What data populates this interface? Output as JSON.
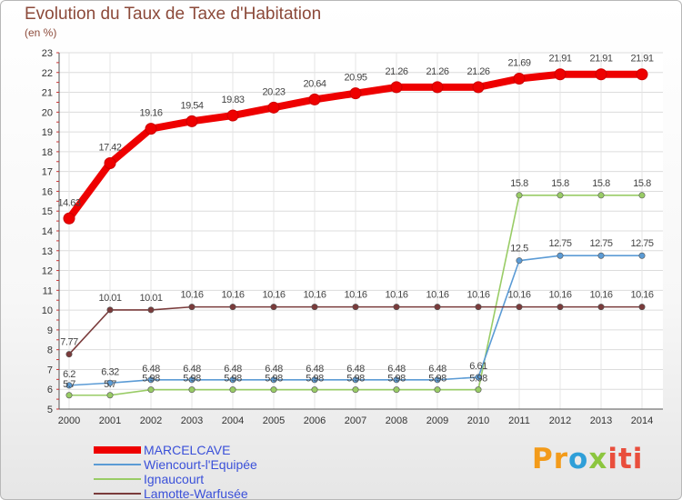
{
  "title": "Evolution du Taux de Taxe d'Habitation",
  "subtitle": "(en %)",
  "logo": {
    "text": "Proxiti"
  },
  "chart_data": {
    "type": "line",
    "title": "Evolution du Taux de Taxe d'Habitation",
    "ylabel": "(en %)",
    "x": [
      2000,
      2001,
      2002,
      2003,
      2004,
      2005,
      2006,
      2007,
      2008,
      2009,
      2010,
      2011,
      2012,
      2013,
      2014
    ],
    "ylim": [
      5,
      23
    ],
    "yticks": [
      5,
      6,
      7,
      8,
      9,
      10,
      11,
      12,
      13,
      14,
      15,
      16,
      17,
      18,
      19,
      20,
      21,
      22,
      23
    ],
    "grid": true,
    "legend": "bottom-left",
    "series": [
      {
        "name": "MARCELCAVE",
        "color": "#ee0000",
        "emphasis": true,
        "values": [
          14.63,
          17.42,
          19.16,
          19.54,
          19.83,
          20.23,
          20.64,
          20.95,
          21.26,
          21.26,
          21.26,
          21.69,
          21.91,
          21.91,
          21.91
        ],
        "labels": [
          "14.63",
          "17.42",
          "19.16",
          "19.54",
          "19.83",
          "20.23",
          "20.64",
          "20.95",
          "21.26",
          "21.26",
          "21.26",
          "21.69",
          "21.91",
          "21.91",
          "21.91"
        ]
      },
      {
        "name": "Wiencourt-l'Equipée",
        "color": "#5b9bd5",
        "values": [
          6.2,
          6.32,
          6.48,
          6.48,
          6.48,
          6.48,
          6.48,
          6.48,
          6.48,
          6.48,
          6.61,
          12.5,
          12.75,
          12.75,
          12.75
        ],
        "labels": [
          "6.2",
          "6.32",
          "6.48",
          "6.48",
          "6.48",
          "6.48",
          "6.48",
          "6.48",
          "6.48",
          "6.48",
          "6.61",
          "12.5",
          "12.75",
          "12.75",
          "12.75"
        ]
      },
      {
        "name": "Ignaucourt",
        "color": "#99cc66",
        "values": [
          5.7,
          5.7,
          5.98,
          5.98,
          5.98,
          5.98,
          5.98,
          5.98,
          5.98,
          5.98,
          5.98,
          15.8,
          15.8,
          15.8,
          15.8
        ],
        "labels": [
          "5.7",
          "5.7",
          "5.98",
          "5.98",
          "5.98",
          "5.98",
          "5.98",
          "5.98",
          "5.98",
          "5.98",
          "5.98",
          "15.8",
          "15.8",
          "15.8",
          "15.8"
        ]
      },
      {
        "name": "Lamotte-Warfusée",
        "color": "#7a3b3b",
        "values": [
          7.77,
          10.01,
          10.01,
          10.16,
          10.16,
          10.16,
          10.16,
          10.16,
          10.16,
          10.16,
          10.16,
          10.16,
          10.16,
          10.16,
          10.16
        ],
        "labels": [
          "7.77",
          "10.01",
          "10.01",
          "10.16",
          "10.16",
          "10.16",
          "10.16",
          "10.16",
          "10.16",
          "10.16",
          "10.16",
          "10.16",
          "10.16",
          "10.16",
          "10.16"
        ]
      }
    ]
  }
}
